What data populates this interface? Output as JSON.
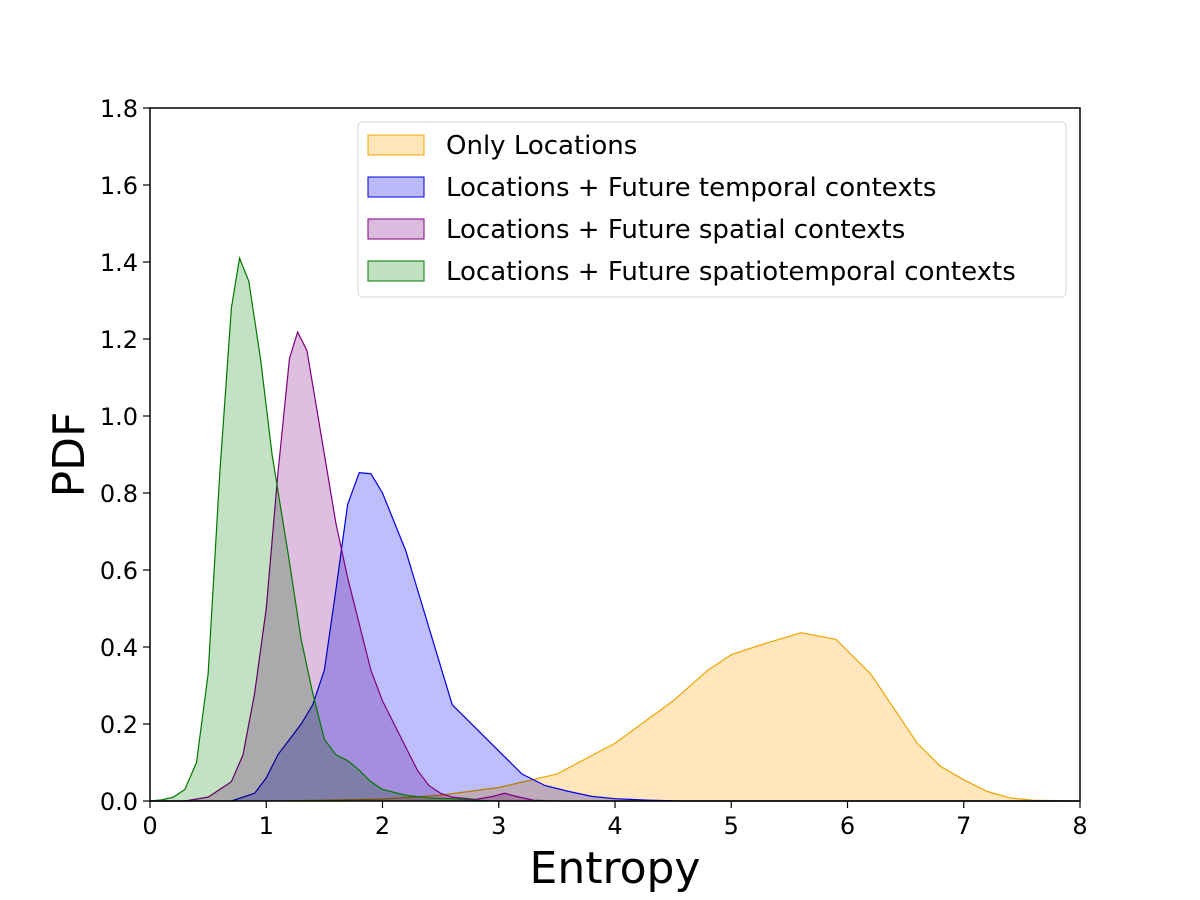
{
  "chart_data": {
    "type": "area",
    "xlabel": "Entropy",
    "ylabel": "PDF",
    "xlim": [
      0,
      8
    ],
    "ylim": [
      0,
      1.8
    ],
    "x_ticks": [
      "0",
      "1",
      "2",
      "3",
      "4",
      "5",
      "6",
      "7",
      "8"
    ],
    "y_ticks": [
      "0.0",
      "0.2",
      "0.4",
      "0.6",
      "0.8",
      "1.0",
      "1.2",
      "1.4",
      "1.6",
      "1.8"
    ],
    "grid": false,
    "legend_position": "top-right",
    "series": [
      {
        "name": "Only Locations",
        "fill": "#ffe5b9",
        "stroke": "#f0a500",
        "points": [
          [
            0,
            0
          ],
          [
            1,
            0.0
          ],
          [
            1.5,
            0.002
          ],
          [
            2,
            0.005
          ],
          [
            2.5,
            0.015
          ],
          [
            3,
            0.035
          ],
          [
            3.5,
            0.07
          ],
          [
            4,
            0.15
          ],
          [
            4.5,
            0.26
          ],
          [
            4.8,
            0.34
          ],
          [
            5,
            0.38
          ],
          [
            5.3,
            0.41
          ],
          [
            5.6,
            0.437
          ],
          [
            5.9,
            0.42
          ],
          [
            6.2,
            0.33
          ],
          [
            6.4,
            0.24
          ],
          [
            6.6,
            0.15
          ],
          [
            6.8,
            0.09
          ],
          [
            7,
            0.055
          ],
          [
            7.2,
            0.025
          ],
          [
            7.4,
            0.008
          ],
          [
            7.6,
            0.002
          ],
          [
            8,
            0
          ]
        ]
      },
      {
        "name": "Locations + Future temporal contexts",
        "fill": "#bbbbfc",
        "stroke": "#0000e0",
        "points": [
          [
            0,
            0
          ],
          [
            0.7,
            0.0
          ],
          [
            0.9,
            0.02
          ],
          [
            1.0,
            0.06
          ],
          [
            1.1,
            0.12
          ],
          [
            1.3,
            0.2
          ],
          [
            1.4,
            0.25
          ],
          [
            1.5,
            0.34
          ],
          [
            1.6,
            0.55
          ],
          [
            1.7,
            0.77
          ],
          [
            1.8,
            0.853
          ],
          [
            1.9,
            0.85
          ],
          [
            2.0,
            0.8
          ],
          [
            2.2,
            0.65
          ],
          [
            2.4,
            0.45
          ],
          [
            2.6,
            0.25
          ],
          [
            2.8,
            0.19
          ],
          [
            3.0,
            0.13
          ],
          [
            3.2,
            0.07
          ],
          [
            3.4,
            0.04
          ],
          [
            3.6,
            0.025
          ],
          [
            3.8,
            0.012
          ],
          [
            4.0,
            0.006
          ],
          [
            4.3,
            0.002
          ],
          [
            4.6,
            0
          ],
          [
            8,
            0
          ]
        ]
      },
      {
        "name": "Locations + Future spatial contexts",
        "fill": "#dcbcde",
        "stroke": "#800080",
        "points": [
          [
            0,
            0
          ],
          [
            0.3,
            0.0
          ],
          [
            0.5,
            0.01
          ],
          [
            0.7,
            0.05
          ],
          [
            0.8,
            0.12
          ],
          [
            0.9,
            0.28
          ],
          [
            1.0,
            0.5
          ],
          [
            1.1,
            0.85
          ],
          [
            1.2,
            1.15
          ],
          [
            1.27,
            1.218
          ],
          [
            1.35,
            1.17
          ],
          [
            1.5,
            0.9
          ],
          [
            1.6,
            0.72
          ],
          [
            1.7,
            0.58
          ],
          [
            1.8,
            0.46
          ],
          [
            1.9,
            0.34
          ],
          [
            2.0,
            0.26
          ],
          [
            2.1,
            0.2
          ],
          [
            2.2,
            0.14
          ],
          [
            2.3,
            0.08
          ],
          [
            2.4,
            0.04
          ],
          [
            2.5,
            0.02
          ],
          [
            2.6,
            0.01
          ],
          [
            2.8,
            0.004
          ],
          [
            2.95,
            0.012
          ],
          [
            3.05,
            0.02
          ],
          [
            3.15,
            0.012
          ],
          [
            3.3,
            0.002
          ],
          [
            3.5,
            0
          ],
          [
            8,
            0
          ]
        ]
      },
      {
        "name": "Locations + Future spatiotemporal contexts",
        "fill": "#c0e0c0",
        "stroke": "#007800",
        "points": [
          [
            0,
            0
          ],
          [
            0.1,
            0.003
          ],
          [
            0.2,
            0.01
          ],
          [
            0.3,
            0.03
          ],
          [
            0.4,
            0.1
          ],
          [
            0.5,
            0.33
          ],
          [
            0.6,
            0.85
          ],
          [
            0.7,
            1.28
          ],
          [
            0.77,
            1.41
          ],
          [
            0.85,
            1.35
          ],
          [
            0.95,
            1.15
          ],
          [
            1.05,
            0.9
          ],
          [
            1.2,
            0.62
          ],
          [
            1.3,
            0.42
          ],
          [
            1.4,
            0.28
          ],
          [
            1.5,
            0.16
          ],
          [
            1.6,
            0.12
          ],
          [
            1.7,
            0.105
          ],
          [
            1.8,
            0.08
          ],
          [
            1.9,
            0.05
          ],
          [
            2.0,
            0.03
          ],
          [
            2.2,
            0.015
          ],
          [
            2.4,
            0.008
          ],
          [
            2.6,
            0.006
          ],
          [
            2.8,
            0.002
          ],
          [
            3.0,
            0
          ],
          [
            8,
            0
          ]
        ]
      }
    ]
  }
}
